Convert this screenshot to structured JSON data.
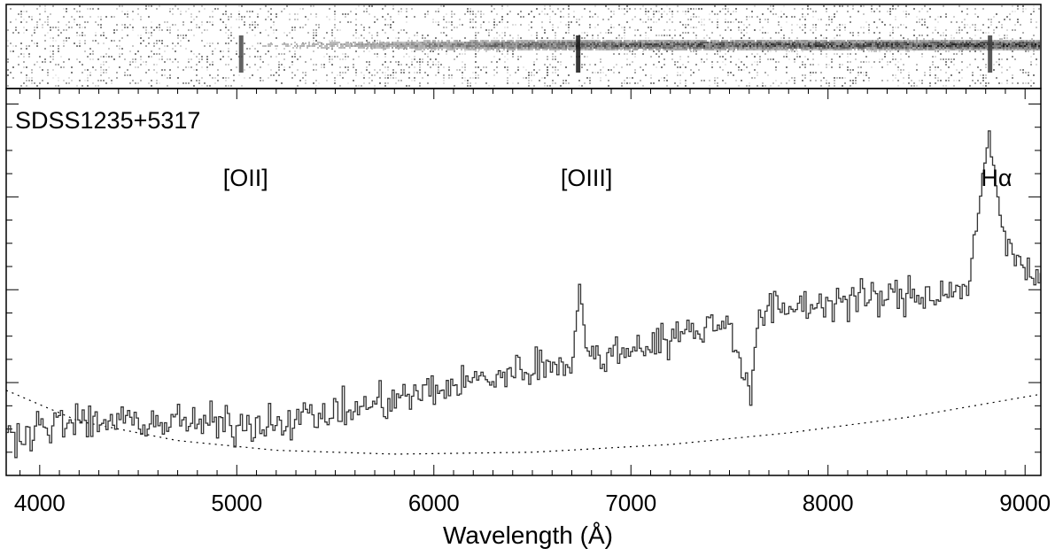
{
  "chart_data": [
    {
      "type": "heatmap",
      "panel": "two-dimensional spectrum",
      "x_range": [
        3830,
        9080
      ],
      "grayscale": "inverted (dark = more flux)",
      "trace_strength": [
        {
          "x": 3850,
          "v": 0.03
        },
        {
          "x": 4500,
          "v": 0.05
        },
        {
          "x": 5000,
          "v": 0.08
        },
        {
          "x": 5500,
          "v": 0.16
        },
        {
          "x": 6000,
          "v": 0.28
        },
        {
          "x": 6500,
          "v": 0.36
        },
        {
          "x": 7000,
          "v": 0.4
        },
        {
          "x": 7500,
          "v": 0.42
        },
        {
          "x": 8000,
          "v": 0.44
        },
        {
          "x": 8500,
          "v": 0.46
        },
        {
          "x": 9080,
          "v": 0.48
        }
      ],
      "vertical_features": [
        {
          "x": 5020,
          "strength": 0.65
        },
        {
          "x": 6730,
          "strength": 0.9
        },
        {
          "x": 8820,
          "strength": 0.7
        }
      ]
    },
    {
      "type": "line",
      "style": "histogram-step",
      "title": "SDSS1235+5317",
      "xlabel": "Wavelength (Å)",
      "ylabel": "",
      "xlim": [
        3830,
        9080
      ],
      "ylim": [
        0,
        100
      ],
      "xticks": [
        4000,
        5000,
        6000,
        7000,
        8000,
        9000
      ],
      "grid": false,
      "annotations": [
        {
          "text": "[OII]",
          "x": 5000
        },
        {
          "text": "[OIII]",
          "x": 6730
        },
        {
          "text": "Hα",
          "x": 8810
        }
      ],
      "series": [
        {
          "values": [
            {
              "x": 3830,
              "y": 10
            },
            {
              "x": 4000,
              "y": 13
            },
            {
              "x": 4500,
              "y": 14
            },
            {
              "x": 5000,
              "y": 13
            },
            {
              "x": 5500,
              "y": 16
            },
            {
              "x": 6000,
              "y": 22
            },
            {
              "x": 6500,
              "y": 28
            },
            {
              "x": 6700,
              "y": 30
            },
            {
              "x": 6735,
              "y": 50
            },
            {
              "x": 6770,
              "y": 30
            },
            {
              "x": 7000,
              "y": 33
            },
            {
              "x": 7500,
              "y": 40
            },
            {
              "x": 7600,
              "y": 20
            },
            {
              "x": 7650,
              "y": 42
            },
            {
              "x": 8000,
              "y": 45
            },
            {
              "x": 8300,
              "y": 46
            },
            {
              "x": 8700,
              "y": 48
            },
            {
              "x": 8810,
              "y": 87
            },
            {
              "x": 8900,
              "y": 58
            },
            {
              "x": 9080,
              "y": 52
            }
          ]
        },
        {
          "line_style": "dotted",
          "values": [
            {
              "x": 3830,
              "y": 22
            },
            {
              "x": 4200,
              "y": 14
            },
            {
              "x": 4700,
              "y": 9
            },
            {
              "x": 5200,
              "y": 6.5
            },
            {
              "x": 5800,
              "y": 5.5
            },
            {
              "x": 6500,
              "y": 6
            },
            {
              "x": 7200,
              "y": 8
            },
            {
              "x": 7800,
              "y": 11
            },
            {
              "x": 8400,
              "y": 15
            },
            {
              "x": 9080,
              "y": 21
            }
          ]
        }
      ]
    }
  ]
}
